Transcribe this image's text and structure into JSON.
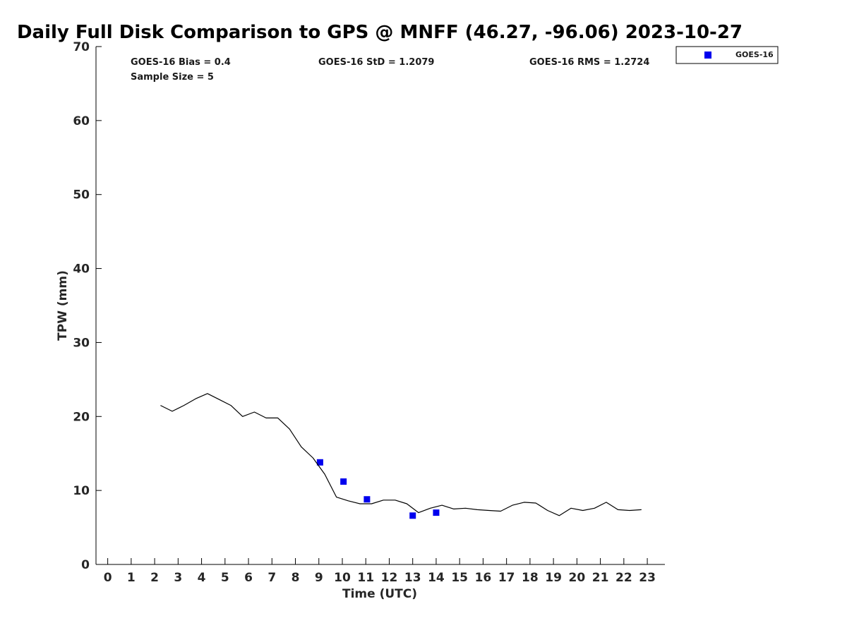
{
  "chart_data": {
    "type": "scatter",
    "title": "Daily Full Disk Comparison to GPS @ MNFF (46.27, -96.06) 2023-10-27",
    "xlabel": "Time (UTC)",
    "ylabel": "TPW (mm)",
    "xlim": [
      -0.5,
      23.75
    ],
    "ylim": [
      0,
      70
    ],
    "xticks": [
      0,
      1,
      2,
      3,
      4,
      5,
      6,
      7,
      8,
      9,
      10,
      11,
      12,
      13,
      14,
      15,
      16,
      17,
      18,
      19,
      20,
      21,
      22,
      23
    ],
    "yticks": [
      0,
      10,
      20,
      30,
      40,
      50,
      60,
      70
    ],
    "grid": false,
    "legend_position": "outside-top-right",
    "stats": {
      "bias": "GOES-16 Bias = 0.4",
      "std": "GOES-16 StD = 1.2079",
      "rms": "GOES-16 RMS = 1.2724",
      "sample_size": "Sample Size = 5"
    },
    "series": [
      {
        "kind": "scatter",
        "name": "GOES-16",
        "color": "#0000ee",
        "marker": "square",
        "x": [
          9.05,
          10.05,
          11.05,
          13.0,
          14.0
        ],
        "y": [
          13.8,
          11.2,
          8.8,
          6.6,
          7.0
        ]
      },
      {
        "kind": "line",
        "color": "#000000",
        "x": [
          2.25,
          2.75,
          3.25,
          3.75,
          4.25,
          4.75,
          5.25,
          5.75,
          6.25,
          6.75,
          7.25,
          7.75,
          8.25,
          8.75,
          9.25,
          9.75,
          10.25,
          10.75,
          11.25,
          11.75,
          12.25,
          12.75,
          13.25,
          13.75,
          14.25,
          14.75,
          15.25,
          15.75,
          16.25,
          16.75,
          17.25,
          17.75,
          18.25,
          18.75,
          19.25,
          19.75,
          20.25,
          20.75,
          21.25,
          21.75,
          22.25,
          22.75
        ],
        "y": [
          21.5,
          20.7,
          21.5,
          22.4,
          23.1,
          22.3,
          21.5,
          20.0,
          20.6,
          19.8,
          19.8,
          18.3,
          15.9,
          14.4,
          12.2,
          9.1,
          8.6,
          8.2,
          8.2,
          8.7,
          8.7,
          8.2,
          7.0,
          7.6,
          8.0,
          7.5,
          7.6,
          7.4,
          7.3,
          7.2,
          8.0,
          8.4,
          8.3,
          7.3,
          6.6,
          7.6,
          7.3,
          7.6,
          8.4,
          7.4,
          7.3,
          7.4
        ]
      }
    ]
  }
}
